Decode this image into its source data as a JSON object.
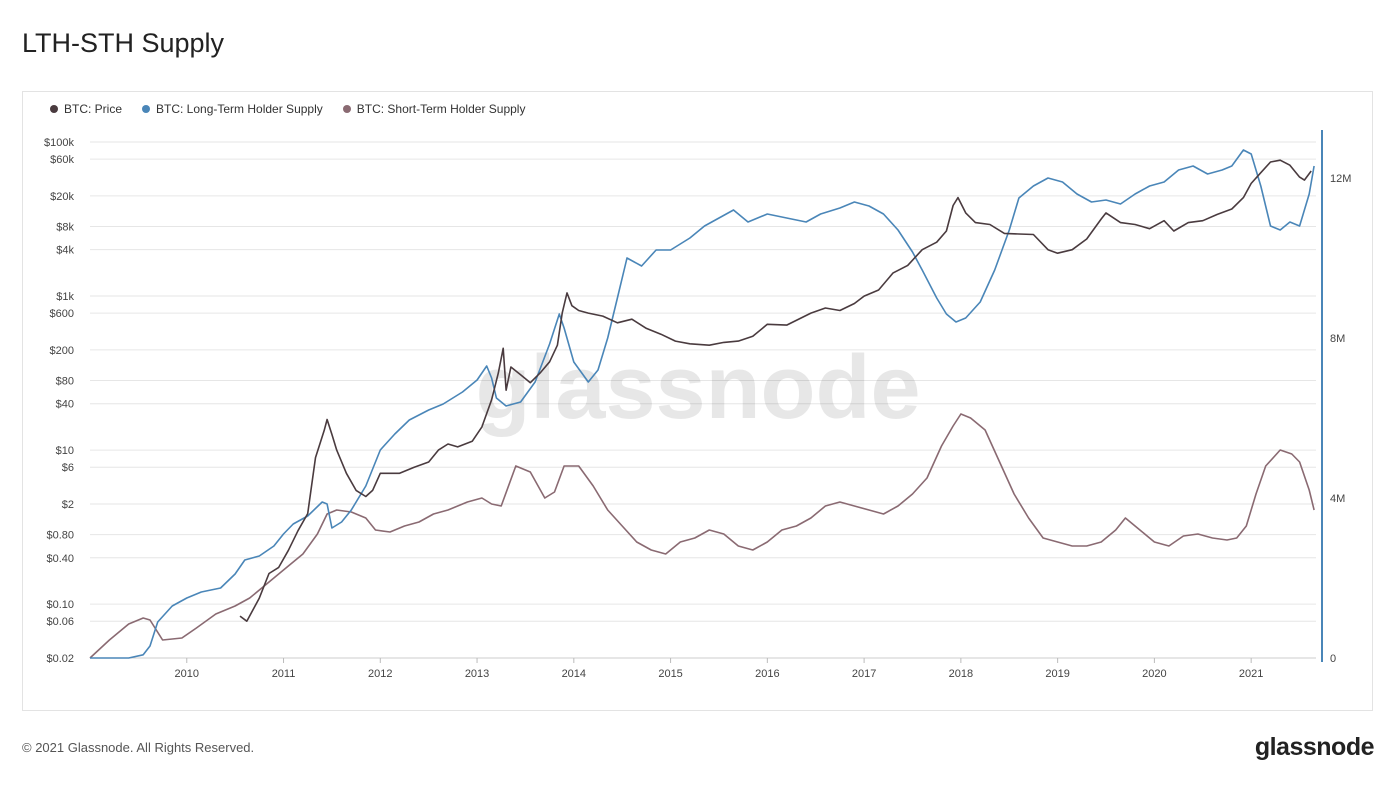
{
  "page": {
    "title": "LTH-STH Supply",
    "copyright": "© 2021 Glassnode. All Rights Reserved.",
    "brand": "glassnode",
    "watermark": "glassnode"
  },
  "chart_data": {
    "type": "line",
    "title": "LTH-STH Supply",
    "legend_position": "top-left",
    "grid": true,
    "x_axis": {
      "range": [
        2009.0,
        2021.67
      ],
      "tick_labels": [
        "2010",
        "2011",
        "2012",
        "2013",
        "2014",
        "2015",
        "2016",
        "2017",
        "2018",
        "2019",
        "2020",
        "2021"
      ],
      "tick_values": [
        2010,
        2011,
        2012,
        2013,
        2014,
        2015,
        2016,
        2017,
        2018,
        2019,
        2020,
        2021
      ]
    },
    "y_left": {
      "scale": "log",
      "range": [
        0.02,
        100000
      ],
      "tick_labels": [
        "$100k",
        "$60k",
        "$20k",
        "$8k",
        "$4k",
        "$1k",
        "$600",
        "$200",
        "$80",
        "$40",
        "$10",
        "$6",
        "$2",
        "$0.80",
        "$0.40",
        "$0.10",
        "$0.06",
        "$0.02"
      ],
      "tick_values": [
        100000,
        60000,
        20000,
        8000,
        4000,
        1000,
        600,
        200,
        80,
        40,
        10,
        6,
        2,
        0.8,
        0.4,
        0.1,
        0.06,
        0.02
      ]
    },
    "y_right": {
      "scale": "linear",
      "range": [
        0,
        13000000
      ],
      "tick_labels": [
        "12M",
        "8M",
        "4M",
        "0"
      ],
      "tick_values": [
        12000000,
        8000000,
        4000000,
        0
      ]
    },
    "colors": {
      "price": "#4a3b3f",
      "lth": "#4a86b8",
      "sth": "#8a6a72",
      "right_axis": "#4a86b8",
      "grid": "#e6e6e6"
    },
    "series": [
      {
        "name": "BTC: Price",
        "axis": "left",
        "x": [
          2010.55,
          2010.62,
          2010.75,
          2010.85,
          2010.95,
          2011.05,
          2011.15,
          2011.25,
          2011.33,
          2011.42,
          2011.45,
          2011.5,
          2011.55,
          2011.65,
          2011.75,
          2011.85,
          2011.92,
          2012.0,
          2012.1,
          2012.2,
          2012.35,
          2012.5,
          2012.6,
          2012.7,
          2012.8,
          2012.95,
          2013.05,
          2013.15,
          2013.22,
          2013.27,
          2013.3,
          2013.35,
          2013.45,
          2013.55,
          2013.65,
          2013.75,
          2013.83,
          2013.88,
          2013.93,
          2013.98,
          2014.05,
          2014.15,
          2014.3,
          2014.45,
          2014.6,
          2014.75,
          2014.9,
          2015.05,
          2015.2,
          2015.4,
          2015.55,
          2015.7,
          2015.85,
          2016.0,
          2016.2,
          2016.45,
          2016.6,
          2016.75,
          2016.9,
          2017.0,
          2017.15,
          2017.3,
          2017.45,
          2017.6,
          2017.75,
          2017.85,
          2017.92,
          2017.97,
          2018.05,
          2018.15,
          2018.3,
          2018.45,
          2018.6,
          2018.75,
          2018.9,
          2019.0,
          2019.15,
          2019.3,
          2019.45,
          2019.5,
          2019.65,
          2019.8,
          2019.95,
          2020.1,
          2020.2,
          2020.35,
          2020.5,
          2020.65,
          2020.8,
          2020.92,
          2021.0,
          2021.1,
          2021.2,
          2021.3,
          2021.4,
          2021.5,
          2021.55,
          2021.62
        ],
        "values": [
          0.07,
          0.06,
          0.12,
          0.25,
          0.3,
          0.5,
          0.9,
          1.5,
          8,
          18,
          25,
          16,
          10,
          5,
          3,
          2.5,
          3,
          5,
          5,
          5,
          6,
          7,
          10,
          12,
          11,
          13,
          20,
          45,
          100,
          210,
          60,
          120,
          95,
          75,
          100,
          140,
          230,
          600,
          1100,
          750,
          650,
          600,
          550,
          450,
          500,
          380,
          320,
          260,
          240,
          230,
          250,
          260,
          300,
          430,
          420,
          600,
          700,
          650,
          800,
          1000,
          1200,
          2000,
          2500,
          4000,
          5000,
          7000,
          15000,
          19000,
          12000,
          9000,
          8500,
          6500,
          6400,
          6300,
          4000,
          3600,
          4000,
          5500,
          10000,
          12000,
          9000,
          8500,
          7500,
          9500,
          7000,
          9000,
          9500,
          11500,
          13500,
          19000,
          29000,
          40000,
          55000,
          58000,
          50000,
          35000,
          32000,
          42000
        ]
      },
      {
        "name": "BTC: Long-Term Holder Supply",
        "axis": "right",
        "x": [
          2009.0,
          2009.4,
          2009.55,
          2009.62,
          2009.7,
          2009.85,
          2010.0,
          2010.15,
          2010.35,
          2010.5,
          2010.6,
          2010.75,
          2010.9,
          2011.0,
          2011.1,
          2011.25,
          2011.4,
          2011.45,
          2011.5,
          2011.6,
          2011.7,
          2011.85,
          2012.0,
          2012.15,
          2012.3,
          2012.5,
          2012.65,
          2012.85,
          2013.0,
          2013.1,
          2013.15,
          2013.2,
          2013.3,
          2013.45,
          2013.6,
          2013.75,
          2013.85,
          2013.9,
          2014.0,
          2014.15,
          2014.25,
          2014.35,
          2014.45,
          2014.55,
          2014.7,
          2014.85,
          2015.0,
          2015.2,
          2015.35,
          2015.5,
          2015.65,
          2015.8,
          2016.0,
          2016.2,
          2016.4,
          2016.55,
          2016.75,
          2016.9,
          2017.05,
          2017.2,
          2017.35,
          2017.5,
          2017.6,
          2017.75,
          2017.85,
          2017.95,
          2018.05,
          2018.2,
          2018.35,
          2018.5,
          2018.6,
          2018.75,
          2018.9,
          2019.05,
          2019.2,
          2019.35,
          2019.5,
          2019.65,
          2019.8,
          2019.95,
          2020.1,
          2020.25,
          2020.4,
          2020.55,
          2020.7,
          2020.8,
          2020.92,
          2021.0,
          2021.1,
          2021.2,
          2021.3,
          2021.4,
          2021.5,
          2021.6,
          2021.65
        ],
        "values": [
          0,
          0,
          80000,
          300000,
          900000,
          1300000,
          1500000,
          1650000,
          1750000,
          2100000,
          2450000,
          2550000,
          2800000,
          3100000,
          3350000,
          3550000,
          3900000,
          3850000,
          3250000,
          3400000,
          3700000,
          4300000,
          5200000,
          5600000,
          5950000,
          6200000,
          6350000,
          6650000,
          6950000,
          7300000,
          7000000,
          6500000,
          6300000,
          6400000,
          6900000,
          7850000,
          8600000,
          8250000,
          7400000,
          6900000,
          7200000,
          8000000,
          9000000,
          10000000,
          9800000,
          10200000,
          10200000,
          10500000,
          10800000,
          11000000,
          11200000,
          10900000,
          11100000,
          11000000,
          10900000,
          11100000,
          11250000,
          11400000,
          11300000,
          11100000,
          10700000,
          10150000,
          9700000,
          9000000,
          8600000,
          8400000,
          8500000,
          8900000,
          9700000,
          10700000,
          11500000,
          11800000,
          12000000,
          11900000,
          11600000,
          11400000,
          11450000,
          11350000,
          11600000,
          11800000,
          11900000,
          12200000,
          12300000,
          12100000,
          12200000,
          12300000,
          12700000,
          12600000,
          11800000,
          10800000,
          10700000,
          10900000,
          10800000,
          11600000,
          12300000
        ]
      },
      {
        "name": "BTC: Short-Term Holder Supply",
        "axis": "right",
        "x": [
          2009.0,
          2009.2,
          2009.4,
          2009.55,
          2009.62,
          2009.75,
          2009.95,
          2010.1,
          2010.3,
          2010.5,
          2010.65,
          2010.8,
          2011.0,
          2011.2,
          2011.35,
          2011.45,
          2011.55,
          2011.7,
          2011.85,
          2011.95,
          2012.1,
          2012.25,
          2012.4,
          2012.55,
          2012.7,
          2012.9,
          2013.05,
          2013.15,
          2013.25,
          2013.4,
          2013.55,
          2013.7,
          2013.8,
          2013.9,
          2014.05,
          2014.2,
          2014.35,
          2014.5,
          2014.65,
          2014.8,
          2014.95,
          2015.1,
          2015.25,
          2015.4,
          2015.55,
          2015.7,
          2015.85,
          2016.0,
          2016.15,
          2016.3,
          2016.45,
          2016.6,
          2016.75,
          2016.9,
          2017.05,
          2017.2,
          2017.35,
          2017.5,
          2017.65,
          2017.8,
          2017.92,
          2018.0,
          2018.1,
          2018.25,
          2018.4,
          2018.55,
          2018.7,
          2018.85,
          2019.0,
          2019.15,
          2019.3,
          2019.45,
          2019.6,
          2019.7,
          2019.85,
          2020.0,
          2020.15,
          2020.3,
          2020.45,
          2020.6,
          2020.75,
          2020.85,
          2020.95,
          2021.05,
          2021.15,
          2021.3,
          2021.42,
          2021.5,
          2021.6,
          2021.65
        ],
        "values": [
          0,
          450000,
          850000,
          1000000,
          950000,
          450000,
          500000,
          750000,
          1100000,
          1300000,
          1500000,
          1800000,
          2200000,
          2600000,
          3100000,
          3600000,
          3700000,
          3650000,
          3500000,
          3200000,
          3150000,
          3300000,
          3400000,
          3600000,
          3700000,
          3900000,
          4000000,
          3850000,
          3800000,
          4800000,
          4650000,
          4000000,
          4150000,
          4800000,
          4800000,
          4300000,
          3700000,
          3300000,
          2900000,
          2700000,
          2600000,
          2900000,
          3000000,
          3200000,
          3100000,
          2800000,
          2700000,
          2900000,
          3200000,
          3300000,
          3500000,
          3800000,
          3900000,
          3800000,
          3700000,
          3600000,
          3800000,
          4100000,
          4500000,
          5300000,
          5800000,
          6100000,
          6000000,
          5700000,
          4900000,
          4100000,
          3500000,
          3000000,
          2900000,
          2800000,
          2800000,
          2900000,
          3200000,
          3500000,
          3200000,
          2900000,
          2800000,
          3050000,
          3100000,
          3000000,
          2950000,
          3000000,
          3300000,
          4100000,
          4800000,
          5200000,
          5100000,
          4900000,
          4200000,
          3700000
        ]
      }
    ]
  }
}
